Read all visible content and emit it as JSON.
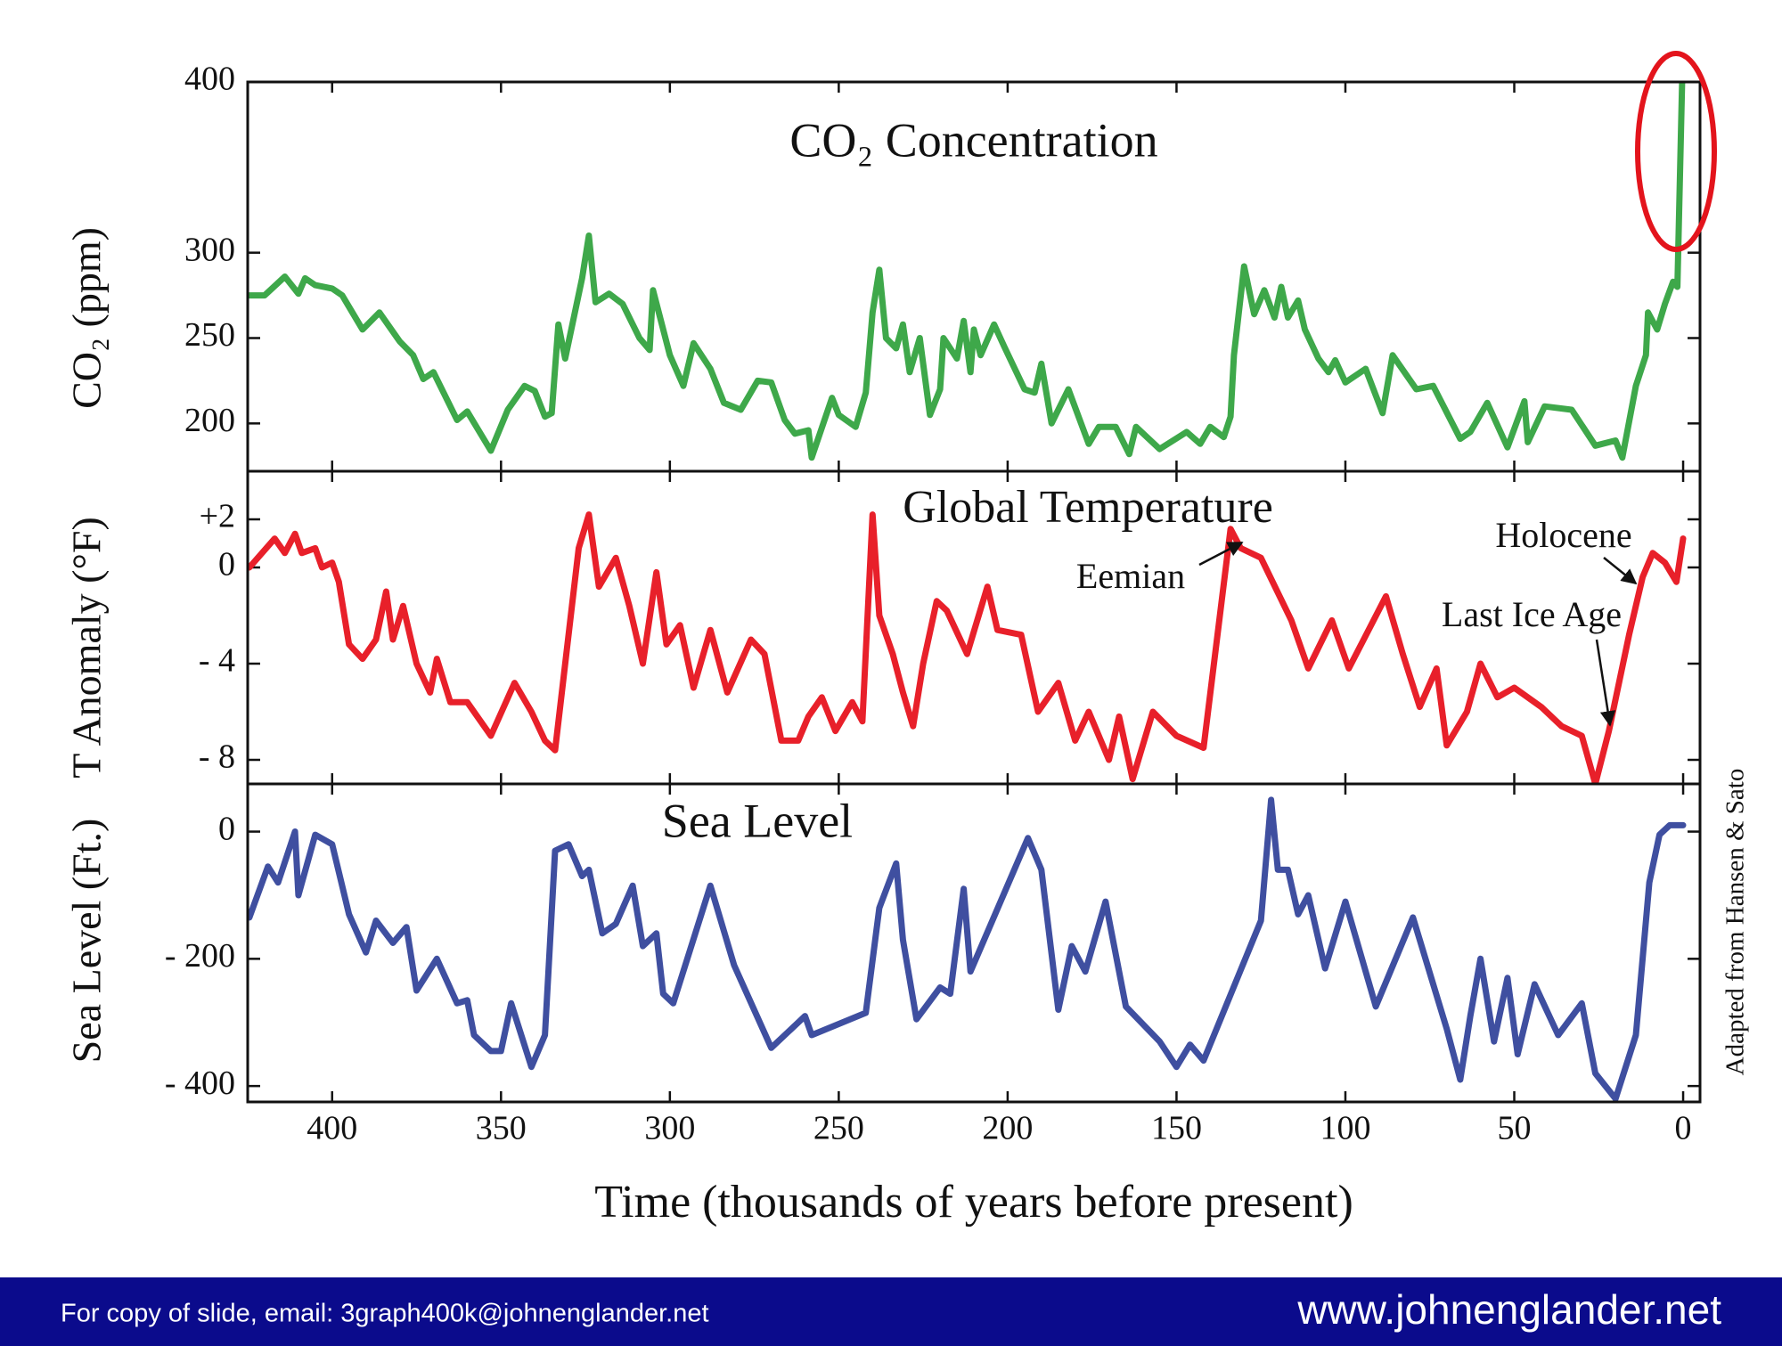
{
  "chart_data": [
    {
      "type": "line",
      "title": "CO₂ Concentration",
      "ylabel": "CO₂ (ppm)",
      "color": "#3ea84a",
      "xlim": [
        425,
        -5
      ],
      "xticks": [
        400,
        350,
        300,
        250,
        200,
        150,
        100,
        50,
        0
      ],
      "ylim": [
        172,
        400
      ],
      "yticks": [
        200,
        250,
        300,
        400
      ],
      "x": [
        424.5,
        420,
        414,
        410,
        408,
        405,
        400,
        397,
        394,
        391,
        386,
        380,
        376,
        373,
        370,
        363,
        360,
        353,
        348,
        343,
        340,
        337,
        335,
        333,
        331,
        326,
        324,
        322,
        318,
        314,
        309,
        306,
        305,
        300,
        296,
        293,
        288,
        284,
        279,
        274,
        270,
        266,
        263,
        259,
        258,
        252,
        250,
        245,
        242,
        240,
        238,
        236,
        233,
        231,
        229,
        226,
        223,
        220,
        219,
        215,
        213,
        211,
        210,
        208,
        204,
        201,
        195,
        192,
        190,
        187,
        182,
        176,
        173,
        168,
        164,
        162,
        155,
        147,
        143,
        140,
        136,
        134,
        133,
        130,
        127,
        124,
        121,
        119,
        117,
        114,
        112,
        108,
        105,
        103,
        100,
        94,
        89,
        86,
        79,
        74,
        66,
        63,
        58,
        52,
        47,
        46,
        41,
        33,
        26,
        20,
        18,
        14,
        11,
        10.4,
        7.7,
        5.4,
        3,
        1.7,
        0.3
      ],
      "values": [
        275,
        275,
        286,
        276,
        285,
        281,
        279,
        275,
        265,
        255,
        265,
        248,
        240,
        226,
        230,
        202,
        207,
        184,
        208,
        222,
        219,
        204,
        206,
        258,
        238,
        285,
        310,
        271,
        276,
        270,
        250,
        243,
        278,
        240,
        222,
        247,
        232,
        212,
        208,
        225,
        224,
        202,
        194,
        196,
        180,
        215,
        205,
        198,
        218,
        265,
        290,
        250,
        244,
        258,
        230,
        250,
        205,
        220,
        250,
        238,
        260,
        230,
        255,
        240,
        258,
        245,
        220,
        218,
        235,
        200,
        220,
        188,
        198,
        198,
        182,
        198,
        185,
        195,
        188,
        198,
        192,
        204,
        240,
        292,
        264,
        278,
        262,
        280,
        262,
        272,
        255,
        238,
        230,
        237,
        224,
        232,
        206,
        240,
        220,
        222,
        191,
        195,
        212,
        186,
        213,
        189,
        210,
        208,
        187,
        190,
        180,
        222,
        240,
        265,
        255,
        270,
        283,
        280,
        400
      ]
    },
    {
      "type": "line",
      "title": "Global Temperature",
      "ylabel": "T Anomaly (°F)",
      "color": "#e8202a",
      "annotations": [
        "Eemian",
        "Holocene",
        "Last Ice Age"
      ],
      "xlim": [
        425,
        -5
      ],
      "xticks": [
        400,
        350,
        300,
        250,
        200,
        150,
        100,
        50,
        0
      ],
      "ylim": [
        -9,
        4
      ],
      "yticks": [
        {
          "value": 2,
          "label": "+2"
        },
        0,
        {
          "value": -4,
          "label": "- 4"
        },
        {
          "value": -8,
          "label": "- 8"
        }
      ],
      "x": [
        424.5,
        417,
        414,
        411,
        409,
        405,
        403,
        400,
        398,
        395,
        391,
        387,
        384,
        382,
        379,
        375,
        371,
        369,
        365,
        360,
        353,
        346,
        341,
        337,
        334,
        329,
        327,
        324,
        321,
        316,
        312,
        308,
        304,
        301,
        297,
        293,
        288,
        283,
        276,
        272,
        267,
        262,
        259,
        255,
        251,
        246,
        243,
        240,
        238,
        234,
        231,
        228,
        225,
        221,
        218,
        212,
        209,
        206,
        203,
        196,
        191,
        185,
        180,
        176,
        170,
        167,
        163,
        157,
        150,
        142,
        134,
        131,
        125,
        116,
        111,
        104,
        99,
        88,
        83,
        78,
        73,
        70,
        64,
        60,
        55,
        50,
        42,
        36,
        30,
        26,
        22,
        16,
        12,
        9,
        5.4,
        2,
        0
      ],
      "values": [
        0,
        1.2,
        0.6,
        1.4,
        0.6,
        0.8,
        0,
        0.2,
        -0.6,
        -3.2,
        -3.8,
        -3,
        -1,
        -3,
        -1.6,
        -4,
        -5.2,
        -3.8,
        -5.6,
        -5.6,
        -7,
        -4.8,
        -6,
        -7.2,
        -7.6,
        -1.6,
        0.8,
        2.2,
        -0.8,
        0.4,
        -1.6,
        -4,
        -0.2,
        -3.2,
        -2.4,
        -5,
        -2.6,
        -5.2,
        -3,
        -3.6,
        -7.2,
        -7.2,
        -6.2,
        -5.4,
        -6.8,
        -5.6,
        -6.4,
        2.2,
        -2,
        -3.6,
        -5.2,
        -6.6,
        -4,
        -1.4,
        -1.8,
        -3.6,
        -2.2,
        -0.8,
        -2.6,
        -2.8,
        -6,
        -4.8,
        -7.2,
        -6,
        -8,
        -6.2,
        -8.8,
        -6,
        -7,
        -7.5,
        1.6,
        0.8,
        0.4,
        -2.2,
        -4.2,
        -2.2,
        -4.2,
        -1.2,
        -3.6,
        -5.8,
        -4.2,
        -7.4,
        -6,
        -4,
        -5.4,
        -5,
        -5.8,
        -6.6,
        -7,
        -9,
        -6.8,
        -2.8,
        -0.4,
        0.6,
        0.2,
        -0.6,
        1.2
      ]
    },
    {
      "type": "line",
      "title": "Sea Level",
      "ylabel": "Sea Level (Ft.)",
      "xlabel": "Time (thousands of years before present)",
      "color": "#3f4fa0",
      "xlim": [
        425,
        -5
      ],
      "xticks": [
        400,
        350,
        300,
        250,
        200,
        150,
        100,
        50,
        0
      ],
      "ylim": [
        -425,
        75
      ],
      "yticks": [
        0,
        {
          "value": -200,
          "label": "- 200"
        },
        {
          "value": -400,
          "label": "- 400"
        }
      ],
      "x": [
        424.5,
        419,
        416,
        411,
        410,
        405,
        400,
        395,
        390,
        387,
        382,
        378,
        375,
        369,
        363,
        360,
        358,
        353,
        350,
        347,
        341,
        337,
        334,
        330,
        326,
        324,
        320,
        316,
        311,
        308,
        304,
        302,
        299,
        288,
        281,
        270,
        265,
        260,
        258,
        242,
        238,
        233,
        231,
        227,
        220,
        217,
        213,
        211,
        194,
        190,
        185,
        181,
        177,
        171,
        165,
        155,
        150,
        146,
        142,
        125,
        122,
        120,
        117,
        114,
        111,
        106,
        100,
        91,
        80,
        70,
        66,
        63,
        60,
        56,
        52,
        49,
        44,
        37,
        30,
        26,
        20,
        14,
        10,
        7,
        4,
        0
      ],
      "values": [
        -135,
        -55,
        -80,
        0,
        -100,
        -5,
        -20,
        -130,
        -190,
        -140,
        -175,
        -150,
        -250,
        -200,
        -270,
        -265,
        -320,
        -345,
        -345,
        -270,
        -370,
        -320,
        -30,
        -20,
        -70,
        -60,
        -160,
        -145,
        -85,
        -180,
        -160,
        -255,
        -270,
        -85,
        -210,
        -340,
        -315,
        -290,
        -320,
        -285,
        -120,
        -50,
        -170,
        -295,
        -245,
        -255,
        -90,
        -220,
        -10,
        -60,
        -280,
        -180,
        -220,
        -110,
        -275,
        -330,
        -370,
        -335,
        -360,
        -140,
        50,
        -60,
        -60,
        -130,
        -100,
        -215,
        -110,
        -275,
        -135,
        -310,
        -390,
        -290,
        -200,
        -330,
        -230,
        -350,
        -240,
        -320,
        -270,
        -380,
        -420,
        -320,
        -80,
        -5,
        10,
        10
      ]
    }
  ],
  "credit": "Adapted from Hansen & Sato",
  "footer": {
    "left": "For copy of  slide, email:  3graph400k@johnenglander.net",
    "right": "www.johnenglander.net"
  }
}
